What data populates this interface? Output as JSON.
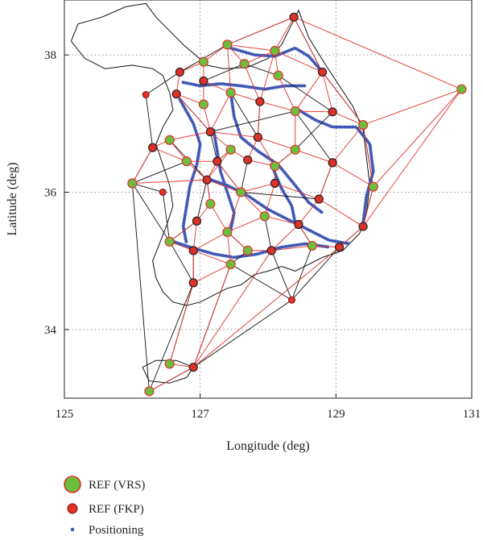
{
  "chart_data": {
    "type": "scatter",
    "xlabel": "Longitude (deg)",
    "ylabel": "Latitude (deg)",
    "xlim": [
      125,
      131
    ],
    "ylim": [
      33,
      38.8
    ],
    "xticks": [
      "125",
      "127",
      "129",
      "131"
    ],
    "yticks": [
      "34",
      "36",
      "38"
    ],
    "grid": "dotted",
    "legend_position": "bottom-left",
    "colors": {
      "vrs_fill": "#6cbf3e",
      "ref_stroke": "#e0302a",
      "fkp_fill": "#e0302a",
      "positioning": "#4158b4",
      "vrs_link": "#e0302a",
      "fkp_link": "#111111",
      "coast": "#111111"
    },
    "legend": [
      {
        "key": "vrs",
        "label": "REF (VRS)"
      },
      {
        "key": "fkp",
        "label": "REF (FKP)"
      },
      {
        "key": "pos",
        "label": "Positioning"
      }
    ],
    "vrs_stations": [
      [
        128.38,
        38.55
      ],
      [
        127.4,
        38.15
      ],
      [
        127.05,
        37.9
      ],
      [
        127.65,
        37.87
      ],
      [
        126.7,
        37.75
      ],
      [
        128.1,
        38.06
      ],
      [
        128.8,
        37.75
      ],
      [
        128.15,
        37.7
      ],
      [
        127.05,
        37.62
      ],
      [
        127.45,
        37.45
      ],
      [
        126.65,
        37.43
      ],
      [
        127.05,
        37.28
      ],
      [
        127.88,
        37.32
      ],
      [
        128.4,
        37.18
      ],
      [
        128.95,
        37.17
      ],
      [
        129.4,
        36.98
      ],
      [
        127.15,
        36.88
      ],
      [
        126.55,
        36.76
      ],
      [
        127.85,
        36.8
      ],
      [
        127.45,
        36.62
      ],
      [
        127.7,
        36.47
      ],
      [
        128.4,
        36.62
      ],
      [
        126.3,
        36.65
      ],
      [
        126.8,
        36.45
      ],
      [
        127.25,
        36.45
      ],
      [
        128.1,
        36.38
      ],
      [
        128.95,
        36.43
      ],
      [
        126.0,
        36.13
      ],
      [
        127.1,
        36.18
      ],
      [
        127.6,
        36.0
      ],
      [
        128.1,
        36.13
      ],
      [
        129.55,
        36.08
      ],
      [
        128.75,
        35.9
      ],
      [
        127.15,
        35.83
      ],
      [
        126.95,
        35.58
      ],
      [
        127.95,
        35.65
      ],
      [
        128.45,
        35.53
      ],
      [
        127.4,
        35.42
      ],
      [
        129.4,
        35.5
      ],
      [
        126.55,
        35.28
      ],
      [
        126.9,
        35.15
      ],
      [
        127.7,
        35.15
      ],
      [
        128.05,
        35.15
      ],
      [
        128.65,
        35.22
      ],
      [
        129.05,
        35.2
      ],
      [
        127.45,
        34.95
      ],
      [
        126.9,
        34.68
      ],
      [
        126.55,
        33.5
      ],
      [
        126.9,
        33.45
      ],
      [
        126.25,
        33.1
      ],
      [
        130.85,
        37.5
      ]
    ],
    "fkp_stations": [
      [
        126.2,
        37.42
      ],
      [
        126.45,
        36.0
      ],
      [
        128.35,
        34.43
      ]
    ],
    "vrs_links": [
      [
        0,
        1
      ],
      [
        0,
        6
      ],
      [
        0,
        50
      ],
      [
        0,
        5
      ],
      [
        1,
        2
      ],
      [
        1,
        5
      ],
      [
        1,
        9
      ],
      [
        1,
        3
      ],
      [
        2,
        4
      ],
      [
        2,
        8
      ],
      [
        3,
        5
      ],
      [
        3,
        12
      ],
      [
        4,
        10
      ],
      [
        5,
        6
      ],
      [
        5,
        7
      ],
      [
        5,
        12
      ],
      [
        6,
        14
      ],
      [
        6,
        15
      ],
      [
        6,
        13
      ],
      [
        7,
        13
      ],
      [
        8,
        9
      ],
      [
        8,
        11
      ],
      [
        9,
        12
      ],
      [
        9,
        16
      ],
      [
        10,
        11
      ],
      [
        10,
        16
      ],
      [
        11,
        16
      ],
      [
        12,
        13
      ],
      [
        12,
        18
      ],
      [
        13,
        14
      ],
      [
        13,
        21
      ],
      [
        14,
        15
      ],
      [
        15,
        50
      ],
      [
        15,
        26
      ],
      [
        15,
        31
      ],
      [
        16,
        17
      ],
      [
        16,
        19
      ],
      [
        16,
        18
      ],
      [
        17,
        22
      ],
      [
        17,
        23
      ],
      [
        18,
        21
      ],
      [
        18,
        20
      ],
      [
        18,
        25
      ],
      [
        19,
        20
      ],
      [
        19,
        24
      ],
      [
        20,
        25
      ],
      [
        21,
        26
      ],
      [
        21,
        25
      ],
      [
        22,
        27
      ],
      [
        23,
        24
      ],
      [
        23,
        28
      ],
      [
        24,
        28
      ],
      [
        25,
        30
      ],
      [
        26,
        31
      ],
      [
        26,
        32
      ],
      [
        27,
        28
      ],
      [
        28,
        29
      ],
      [
        28,
        33
      ],
      [
        29,
        30
      ],
      [
        29,
        35
      ],
      [
        30,
        35
      ],
      [
        30,
        32
      ],
      [
        31,
        50
      ],
      [
        31,
        38
      ],
      [
        32,
        36
      ],
      [
        32,
        38
      ],
      [
        33,
        34
      ],
      [
        33,
        37
      ],
      [
        34,
        39
      ],
      [
        34,
        40
      ],
      [
        35,
        36
      ],
      [
        35,
        37
      ],
      [
        36,
        43
      ],
      [
        37,
        40
      ],
      [
        37,
        41
      ],
      [
        37,
        45
      ],
      [
        38,
        44
      ],
      [
        38,
        50
      ],
      [
        39,
        40
      ],
      [
        40,
        45
      ],
      [
        40,
        46
      ],
      [
        41,
        42
      ],
      [
        42,
        43
      ],
      [
        43,
        44
      ],
      [
        45,
        46
      ],
      [
        45,
        48
      ],
      [
        42,
        48
      ],
      [
        44,
        48
      ],
      [
        46,
        47
      ],
      [
        47,
        48
      ],
      [
        48,
        49
      ],
      [
        36,
        42
      ],
      [
        29,
        37
      ],
      [
        24,
        29
      ],
      [
        22,
        23
      ],
      [
        19,
        28
      ]
    ],
    "fkp_links": [
      [
        0,
        1
      ],
      [
        0,
        6
      ],
      [
        1,
        4
      ],
      [
        4,
        51
      ],
      [
        51,
        22
      ],
      [
        22,
        27
      ],
      [
        27,
        52
      ],
      [
        27,
        39
      ],
      [
        27,
        49
      ],
      [
        39,
        46
      ],
      [
        46,
        49
      ],
      [
        49,
        48
      ],
      [
        48,
        53
      ],
      [
        53,
        44
      ],
      [
        44,
        38
      ],
      [
        38,
        31
      ],
      [
        31,
        15
      ],
      [
        15,
        6
      ],
      [
        10,
        16
      ],
      [
        16,
        13
      ],
      [
        13,
        26
      ],
      [
        26,
        32
      ],
      [
        32,
        29
      ],
      [
        29,
        24
      ],
      [
        24,
        16
      ],
      [
        28,
        34
      ],
      [
        34,
        39
      ],
      [
        37,
        41
      ],
      [
        41,
        45
      ],
      [
        45,
        53
      ],
      [
        45,
        48
      ],
      [
        42,
        53
      ],
      [
        43,
        53
      ],
      [
        36,
        43
      ],
      [
        35,
        42
      ],
      [
        30,
        25
      ],
      [
        25,
        21
      ],
      [
        21,
        14
      ],
      [
        20,
        29
      ],
      [
        19,
        24
      ],
      [
        12,
        18
      ],
      [
        8,
        3
      ],
      [
        3,
        7
      ],
      [
        7,
        14
      ],
      [
        52,
        39
      ],
      [
        23,
        27
      ],
      [
        47,
        46
      ],
      [
        33,
        28
      ],
      [
        9,
        18
      ],
      [
        17,
        28
      ],
      [
        40,
        46
      ]
    ],
    "coastline": [
      [
        126.2,
        38.75
      ],
      [
        126.35,
        38.55
      ],
      [
        126.55,
        38.35
      ],
      [
        126.75,
        38.15
      ],
      [
        126.95,
        37.98
      ],
      [
        127.1,
        37.85
      ],
      [
        127.35,
        37.8
      ],
      [
        127.7,
        37.82
      ],
      [
        128.0,
        37.95
      ],
      [
        128.2,
        38.15
      ],
      [
        128.35,
        38.45
      ],
      [
        128.45,
        38.65
      ],
      [
        128.6,
        38.25
      ],
      [
        128.85,
        37.85
      ],
      [
        129.05,
        37.55
      ],
      [
        129.25,
        37.25
      ],
      [
        129.4,
        36.9
      ],
      [
        129.45,
        36.5
      ],
      [
        129.5,
        36.1
      ],
      [
        129.45,
        35.7
      ],
      [
        129.35,
        35.4
      ],
      [
        129.1,
        35.15
      ],
      [
        128.8,
        35.05
      ],
      [
        128.6,
        34.95
      ],
      [
        128.4,
        34.85
      ],
      [
        128.2,
        34.92
      ],
      [
        128.0,
        34.85
      ],
      [
        127.8,
        34.8
      ],
      [
        127.6,
        34.65
      ],
      [
        127.4,
        34.6
      ],
      [
        127.2,
        34.5
      ],
      [
        127.0,
        34.4
      ],
      [
        126.8,
        34.35
      ],
      [
        126.6,
        34.4
      ],
      [
        126.45,
        34.55
      ],
      [
        126.35,
        34.75
      ],
      [
        126.3,
        35.0
      ],
      [
        126.4,
        35.25
      ],
      [
        126.5,
        35.5
      ],
      [
        126.6,
        35.8
      ],
      [
        126.55,
        36.1
      ],
      [
        126.45,
        36.4
      ],
      [
        126.35,
        36.7
      ],
      [
        126.45,
        36.95
      ],
      [
        126.6,
        37.2
      ],
      [
        126.55,
        37.45
      ],
      [
        126.45,
        37.7
      ],
      [
        126.3,
        37.8
      ],
      [
        126.0,
        37.85
      ],
      [
        125.6,
        37.8
      ],
      [
        125.3,
        37.95
      ],
      [
        125.1,
        38.2
      ],
      [
        125.2,
        38.45
      ],
      [
        125.55,
        38.55
      ],
      [
        125.9,
        38.7
      ],
      [
        126.2,
        38.75
      ]
    ],
    "jeju_island": [
      [
        126.15,
        33.45
      ],
      [
        126.35,
        33.55
      ],
      [
        126.65,
        33.55
      ],
      [
        126.9,
        33.45
      ],
      [
        126.8,
        33.3
      ],
      [
        126.55,
        33.22
      ],
      [
        126.25,
        33.25
      ],
      [
        126.15,
        33.45
      ]
    ],
    "positioning_tracks": [
      [
        [
          127.45,
          38.1
        ],
        [
          127.8,
          38.0
        ],
        [
          128.1,
          37.98
        ],
        [
          128.4,
          38.1
        ],
        [
          128.6,
          37.98
        ],
        [
          128.8,
          37.75
        ]
      ],
      [
        [
          126.75,
          37.6
        ],
        [
          127.0,
          37.55
        ],
        [
          127.3,
          37.58
        ],
        [
          127.6,
          37.55
        ],
        [
          127.95,
          37.5
        ],
        [
          128.25,
          37.55
        ],
        [
          128.55,
          37.55
        ]
      ],
      [
        [
          126.7,
          37.35
        ],
        [
          126.9,
          37.0
        ],
        [
          127.0,
          36.7
        ],
        [
          126.95,
          36.4
        ],
        [
          126.85,
          36.1
        ],
        [
          126.8,
          35.8
        ],
        [
          126.75,
          35.5
        ],
        [
          126.8,
          35.25
        ]
      ],
      [
        [
          127.1,
          36.2
        ],
        [
          127.4,
          36.1
        ],
        [
          127.7,
          35.95
        ],
        [
          128.0,
          35.75
        ],
        [
          128.3,
          35.6
        ],
        [
          128.6,
          35.45
        ],
        [
          128.9,
          35.3
        ],
        [
          129.2,
          35.25
        ]
      ],
      [
        [
          127.45,
          37.45
        ],
        [
          127.5,
          37.1
        ],
        [
          127.6,
          36.8
        ],
        [
          127.85,
          36.6
        ],
        [
          128.15,
          36.4
        ],
        [
          128.4,
          36.1
        ],
        [
          128.6,
          35.85
        ],
        [
          128.8,
          35.7
        ]
      ],
      [
        [
          128.45,
          37.2
        ],
        [
          128.7,
          37.05
        ],
        [
          128.95,
          36.95
        ],
        [
          129.3,
          36.95
        ],
        [
          129.5,
          36.7
        ],
        [
          129.55,
          36.3
        ],
        [
          129.45,
          35.95
        ],
        [
          129.4,
          35.55
        ]
      ],
      [
        [
          126.55,
          35.3
        ],
        [
          126.85,
          35.2
        ],
        [
          127.2,
          35.1
        ],
        [
          127.5,
          35.05
        ],
        [
          127.85,
          35.1
        ],
        [
          128.2,
          35.2
        ],
        [
          128.55,
          35.25
        ],
        [
          128.9,
          35.2
        ]
      ],
      [
        [
          127.2,
          36.9
        ],
        [
          127.25,
          36.6
        ],
        [
          127.3,
          36.3
        ],
        [
          127.4,
          36.0
        ],
        [
          127.5,
          35.7
        ],
        [
          127.45,
          35.45
        ]
      ],
      [
        [
          128.05,
          36.4
        ],
        [
          128.2,
          36.05
        ],
        [
          128.35,
          35.8
        ],
        [
          128.4,
          35.55
        ]
      ]
    ]
  }
}
